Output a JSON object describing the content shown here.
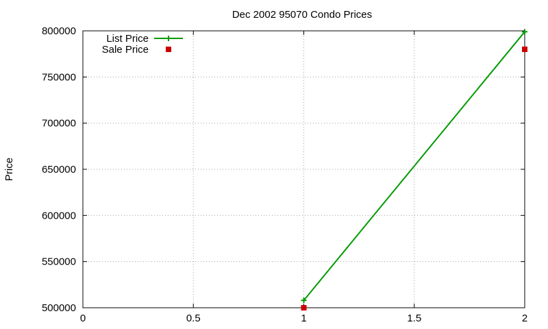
{
  "chart_data": {
    "type": "line",
    "title": "Dec 2002 95070 Condo Prices",
    "xlabel": "",
    "ylabel": "Price",
    "xlim": [
      0,
      2
    ],
    "ylim": [
      500000,
      800000
    ],
    "x_ticks": [
      0,
      0.5,
      1,
      1.5,
      2
    ],
    "x_tick_labels": [
      "0",
      "0.5",
      "1",
      "1.5",
      "2"
    ],
    "y_ticks": [
      500000,
      550000,
      600000,
      650000,
      700000,
      750000,
      800000
    ],
    "y_tick_labels": [
      "500000",
      "550000",
      "600000",
      "650000",
      "700000",
      "750000",
      "800000"
    ],
    "grid": true,
    "legend_position": "top-left",
    "series": [
      {
        "name": "List Price",
        "style": "linespoints",
        "marker": "plus",
        "color": "#009900",
        "x": [
          1,
          2
        ],
        "y": [
          508000,
          799000
        ]
      },
      {
        "name": "Sale Price",
        "style": "points",
        "marker": "square",
        "color": "#cc0000",
        "x": [
          1,
          2
        ],
        "y": [
          500000,
          780000
        ]
      }
    ]
  }
}
